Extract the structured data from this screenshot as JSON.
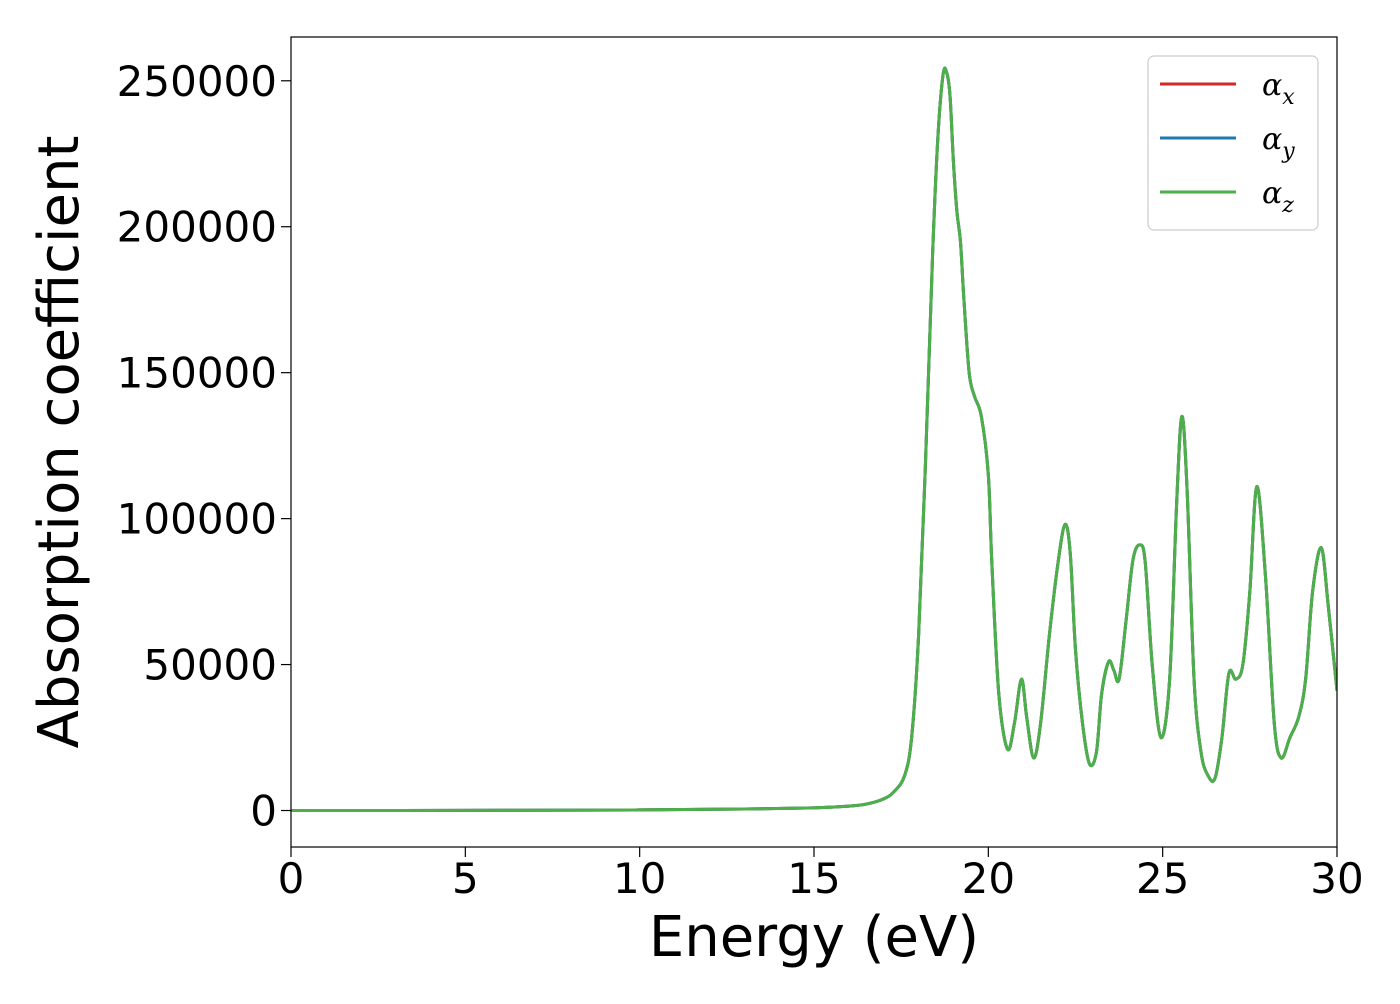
{
  "chart_data": {
    "type": "line",
    "xlabel": "Energy (eV)",
    "ylabel": "Absorption coefficient",
    "xlim": [
      0,
      30
    ],
    "ylim": [
      -12500,
      265000
    ],
    "x_ticks": [
      "0",
      "5",
      "10",
      "15",
      "20",
      "25",
      "30"
    ],
    "y_ticks": [
      "0",
      "50000",
      "100000",
      "150000",
      "200000",
      "250000"
    ],
    "grid": false,
    "legend": {
      "placement": "top-right",
      "entries": [
        {
          "symbol": "α",
          "sub": "x",
          "color": "#d62728"
        },
        {
          "symbol": "α",
          "sub": "y",
          "color": "#1f77b4"
        },
        {
          "symbol": "α",
          "sub": "z",
          "color": "#4daf4a"
        }
      ]
    },
    "x": [
      0,
      5,
      10,
      13,
      15,
      16,
      16.5,
      17,
      17.3,
      17.6,
      17.8,
      18.0,
      18.2,
      18.4,
      18.55,
      18.7,
      18.8,
      18.9,
      19.0,
      19.1,
      19.2,
      19.3,
      19.45,
      19.6,
      19.8,
      20.0,
      20.1,
      20.3,
      20.55,
      20.75,
      20.95,
      21.1,
      21.3,
      21.5,
      21.75,
      22.0,
      22.2,
      22.35,
      22.5,
      22.7,
      22.9,
      23.1,
      23.25,
      23.45,
      23.6,
      23.75,
      23.95,
      24.15,
      24.35,
      24.5,
      24.7,
      24.95,
      25.2,
      25.4,
      25.55,
      25.7,
      25.9,
      26.1,
      26.3,
      26.5,
      26.7,
      26.9,
      27.1,
      27.3,
      27.5,
      27.7,
      27.95,
      28.2,
      28.4,
      28.65,
      28.9,
      29.1,
      29.3,
      29.55,
      29.75,
      30.0
    ],
    "series": [
      {
        "name": "α_x",
        "color": "#d62728",
        "values": [
          0,
          50,
          200,
          500,
          900,
          1500,
          2200,
          4000,
          6500,
          12000,
          25000,
          60000,
          120000,
          190000,
          230000,
          252000,
          253000,
          245000,
          222000,
          205000,
          195000,
          175000,
          150000,
          142000,
          135000,
          115000,
          85000,
          40000,
          21000,
          30000,
          45000,
          32000,
          18000,
          30000,
          60000,
          85000,
          98000,
          88000,
          55000,
          30000,
          16000,
          20000,
          40000,
          51000,
          48000,
          45000,
          65000,
          86000,
          91000,
          85000,
          50000,
          25000,
          45000,
          105000,
          135000,
          110000,
          45000,
          20000,
          12000,
          11000,
          25000,
          47000,
          45000,
          50000,
          75000,
          111000,
          80000,
          30000,
          18000,
          25000,
          32000,
          45000,
          75000,
          90000,
          70000,
          41000
        ]
      },
      {
        "name": "α_y",
        "color": "#1f77b4",
        "values": [
          0,
          50,
          200,
          500,
          900,
          1500,
          2200,
          4000,
          6500,
          12000,
          25000,
          60000,
          120000,
          190000,
          230000,
          252000,
          253000,
          245000,
          222000,
          205000,
          195000,
          175000,
          150000,
          142000,
          135000,
          115000,
          85000,
          40000,
          21000,
          30000,
          45000,
          32000,
          18000,
          30000,
          60000,
          85000,
          98000,
          88000,
          55000,
          30000,
          16000,
          20000,
          40000,
          51000,
          48000,
          45000,
          65000,
          86000,
          91000,
          85000,
          50000,
          25000,
          45000,
          105000,
          135000,
          110000,
          45000,
          20000,
          12000,
          11000,
          25000,
          47000,
          45000,
          50000,
          75000,
          111000,
          80000,
          30000,
          18000,
          25000,
          32000,
          45000,
          75000,
          90000,
          70000,
          41000
        ]
      },
      {
        "name": "α_z",
        "color": "#4daf4a",
        "values": [
          0,
          50,
          200,
          500,
          900,
          1500,
          2200,
          4000,
          6500,
          12000,
          25000,
          60000,
          120000,
          190000,
          230000,
          252000,
          253000,
          245000,
          222000,
          205000,
          195000,
          175000,
          150000,
          142000,
          135000,
          115000,
          85000,
          40000,
          21000,
          30000,
          45000,
          32000,
          18000,
          30000,
          60000,
          85000,
          98000,
          88000,
          55000,
          30000,
          16000,
          20000,
          40000,
          51000,
          48000,
          45000,
          65000,
          86000,
          91000,
          85000,
          50000,
          25000,
          45000,
          105000,
          135000,
          110000,
          45000,
          20000,
          12000,
          11000,
          25000,
          47000,
          45000,
          50000,
          75000,
          111000,
          80000,
          30000,
          18000,
          25000,
          32000,
          45000,
          75000,
          90000,
          70000,
          41000
        ]
      }
    ]
  }
}
